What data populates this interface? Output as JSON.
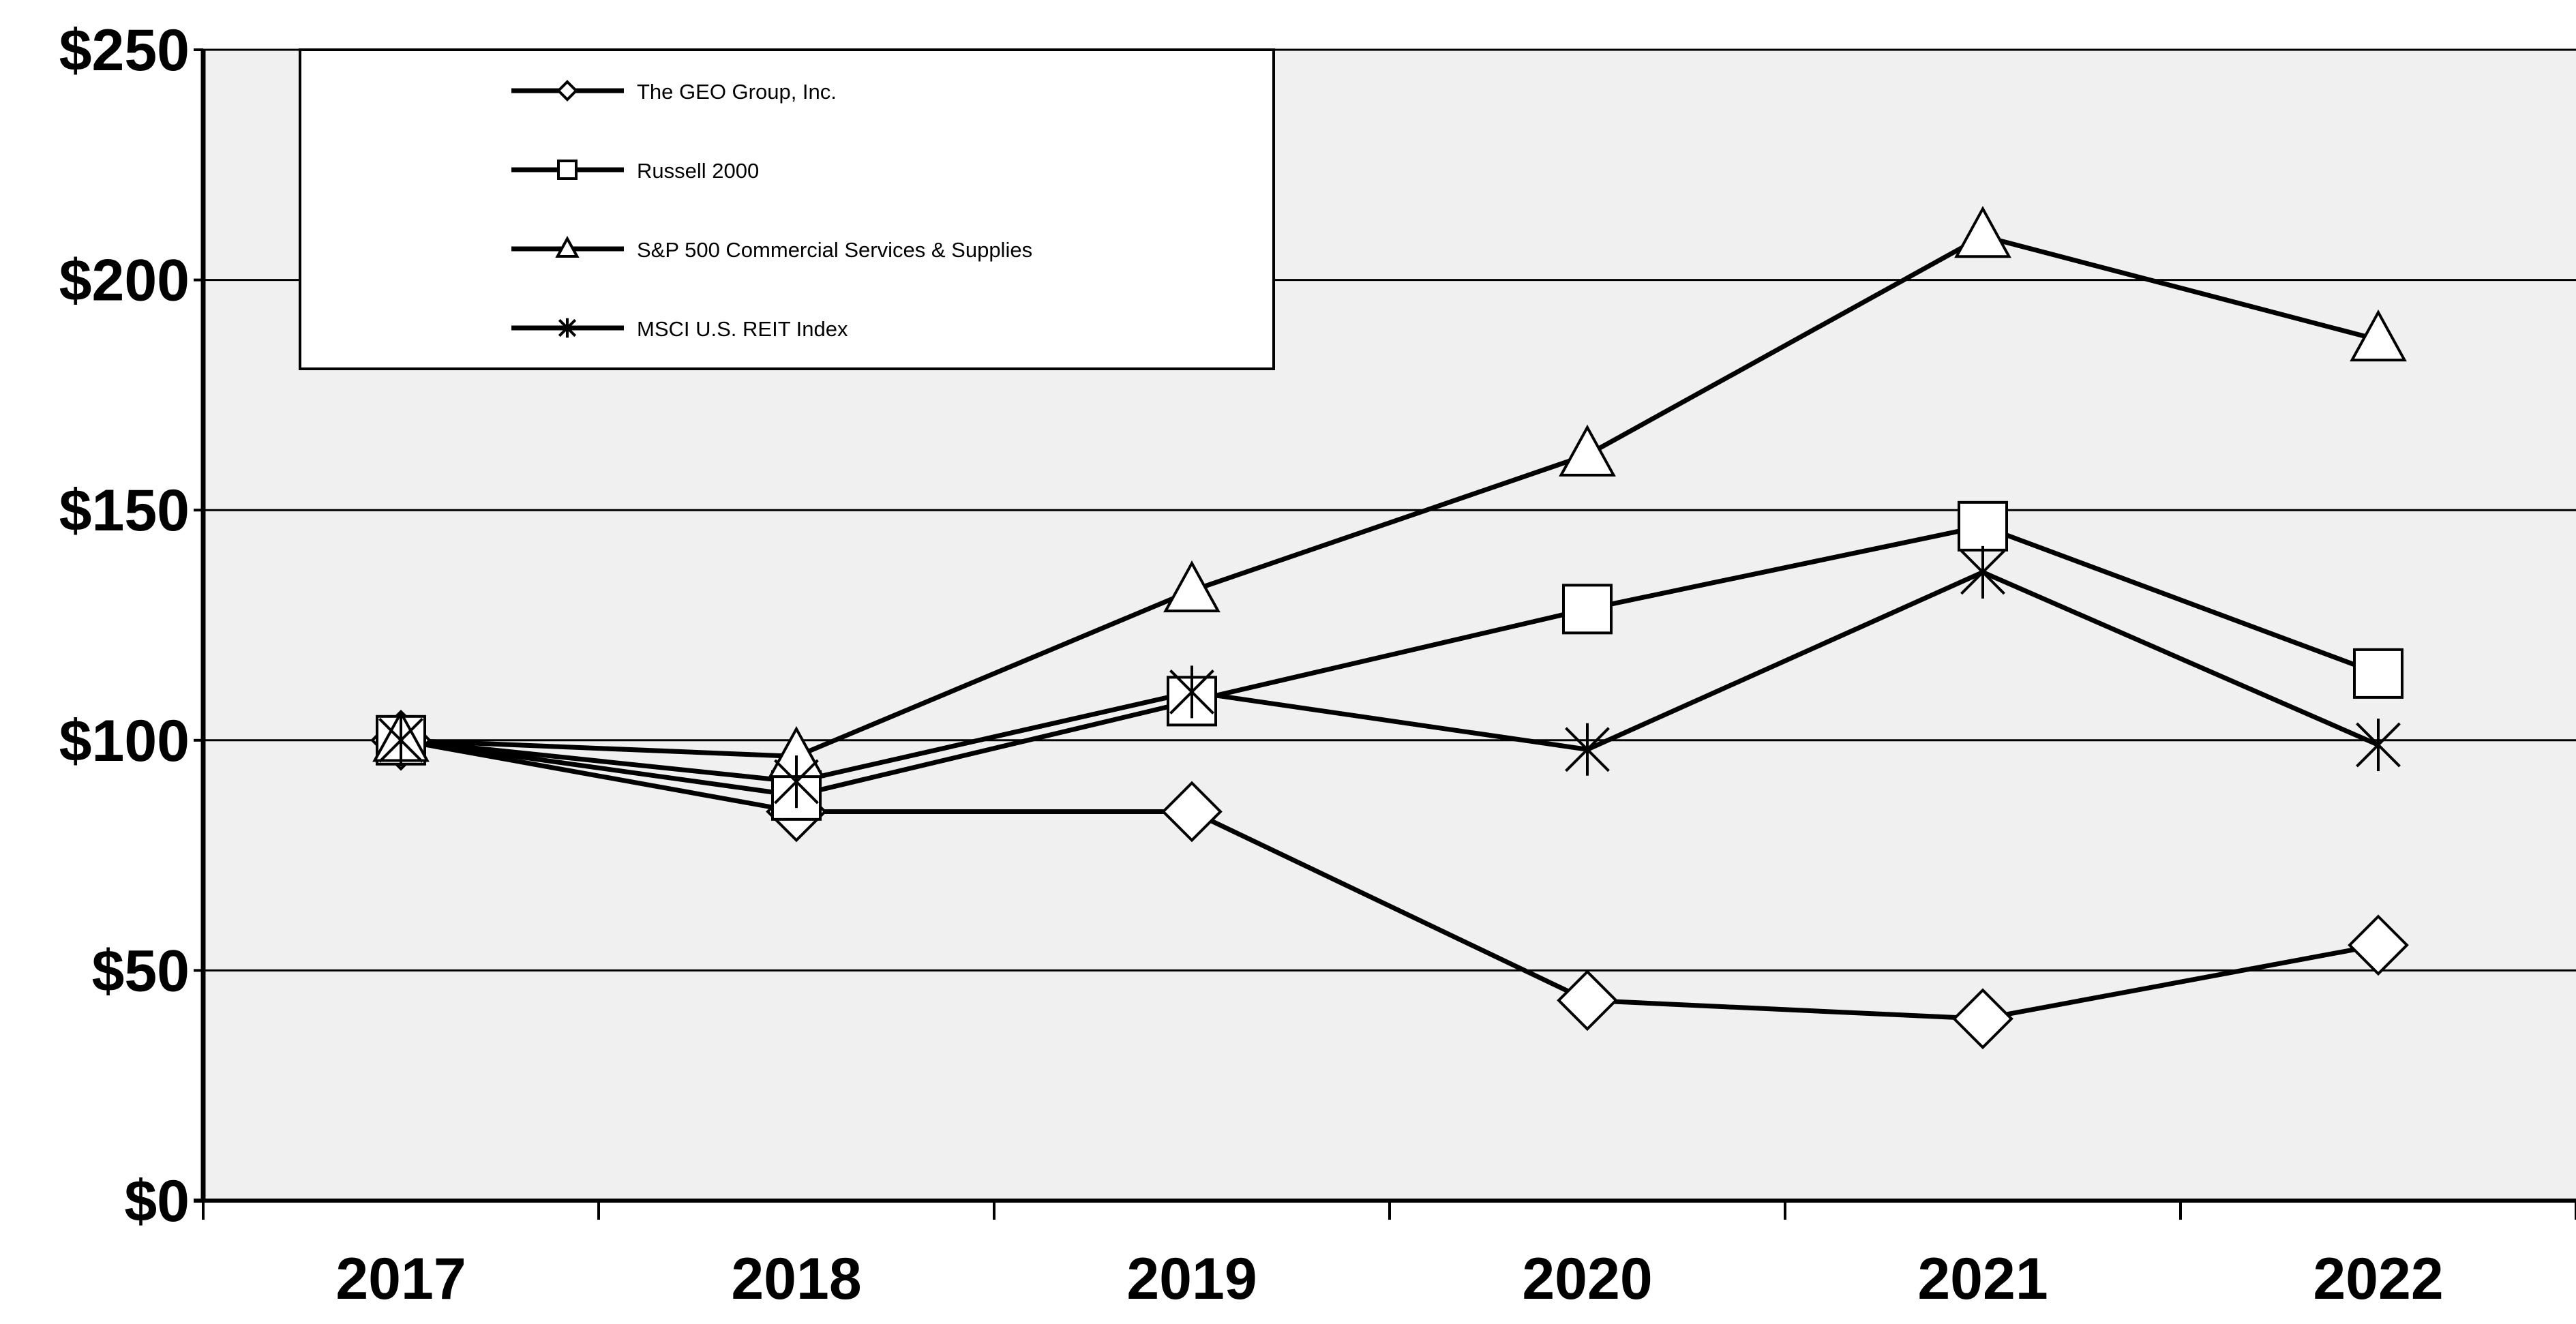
{
  "chart_data": {
    "type": "line",
    "title": "",
    "xlabel": "",
    "ylabel": "",
    "categories": [
      "2017",
      "2018",
      "2019",
      "2020",
      "2021",
      "2022"
    ],
    "ylim": [
      0,
      250
    ],
    "yticks": [
      0,
      50,
      100,
      150,
      200,
      250
    ],
    "ytick_labels": [
      "$0",
      "$50",
      "$100",
      "$150",
      "$200",
      "$250"
    ],
    "grid": true,
    "legend_position": "top-left",
    "series": [
      {
        "name": "The GEO Group, Inc.",
        "marker": "diamond",
        "values": [
          100,
          84.5,
          84.5,
          43.5,
          39.5,
          55.5
        ]
      },
      {
        "name": "Russell 2000",
        "marker": "square",
        "values": [
          100,
          88,
          108.5,
          128.5,
          146.5,
          114.5
        ]
      },
      {
        "name": "S&P 500 Commercial Services & Supplies",
        "marker": "triangle",
        "values": [
          100,
          96.5,
          132.5,
          162,
          209.5,
          187
        ]
      },
      {
        "name": "MSCI U.S. REIT Index",
        "marker": "asterisk",
        "values": [
          100,
          91,
          110.5,
          98,
          136.5,
          99
        ]
      }
    ],
    "colors": {
      "plot_background": "#f0f0f0",
      "line": "#000000",
      "marker_fill": "#ffffff"
    }
  }
}
